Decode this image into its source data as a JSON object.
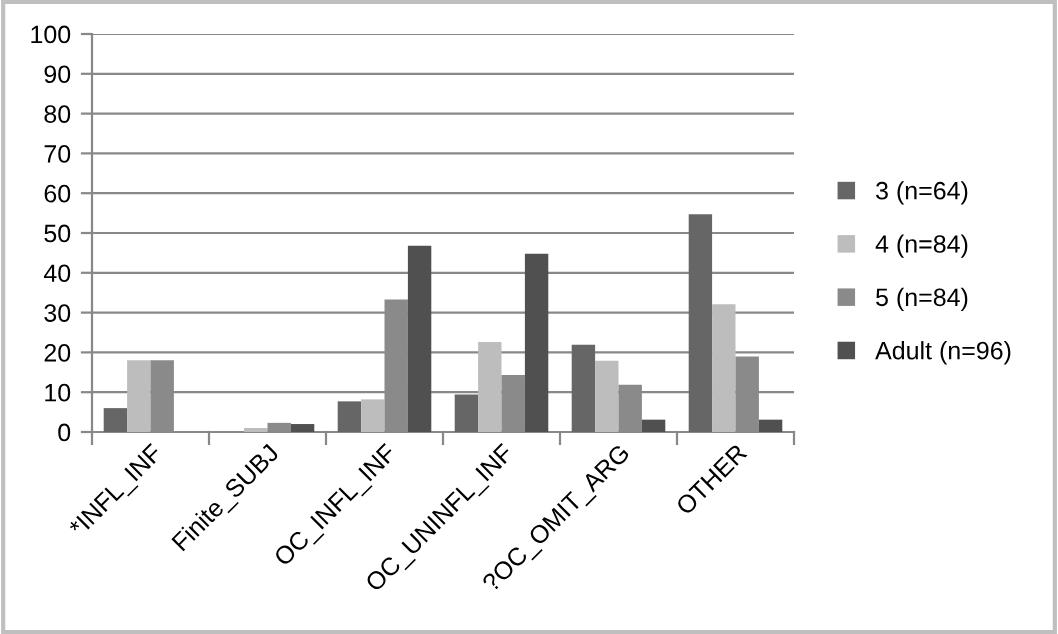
{
  "chart_data": {
    "type": "bar",
    "categories": [
      "*INFL_INF",
      "Finite_SUBJ",
      "OC_INFL_INF",
      "OC_UNINFL_INF",
      "?OC_OMIT_ARG",
      "OTHER"
    ],
    "series": [
      {
        "name": "3 (n=64)",
        "color": "#666666",
        "values": [
          6,
          0,
          7.7,
          9.4,
          21.9,
          54.7
        ]
      },
      {
        "name": "4 (n=84)",
        "color": "#bdbdbd",
        "values": [
          18,
          1,
          8.2,
          22.6,
          17.9,
          32.1
        ]
      },
      {
        "name": "5 (n=84)",
        "color": "#8a8a8a",
        "values": [
          18,
          2.3,
          33.3,
          14.3,
          11.9,
          19
        ]
      },
      {
        "name": "Adult (n=96)",
        "color": "#505050",
        "values": [
          0,
          2,
          46.8,
          44.8,
          3.1,
          3.1
        ]
      }
    ],
    "ylim": [
      0,
      100
    ],
    "yticks": [
      0,
      10,
      20,
      30,
      40,
      50,
      60,
      70,
      80,
      90,
      100
    ],
    "grid": "y",
    "legend": "right"
  }
}
